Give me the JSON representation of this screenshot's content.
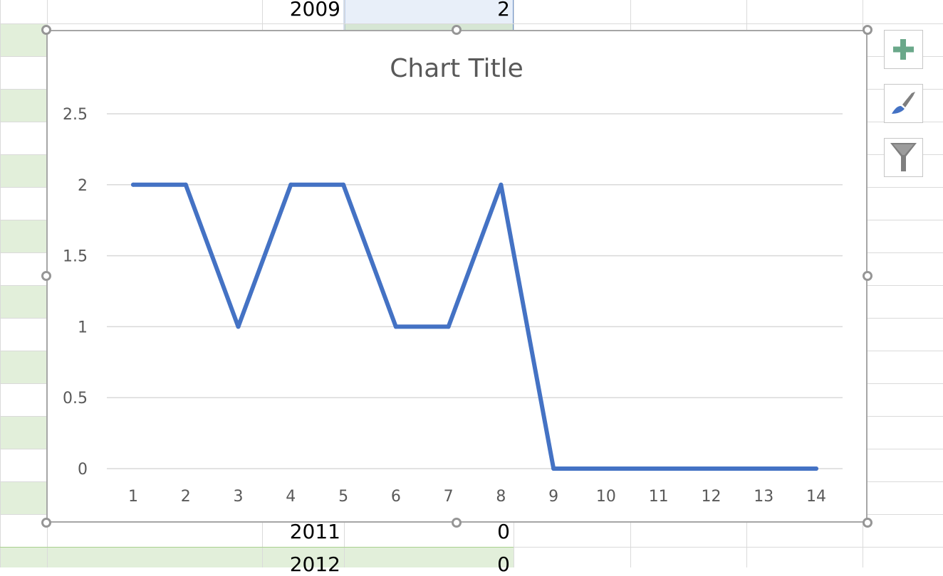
{
  "sheet": {
    "rows": [
      {
        "year": "2009",
        "value": "2"
      },
      {
        "year": "2011",
        "value": "0"
      },
      {
        "year": "2012",
        "value": "0"
      }
    ]
  },
  "chart_tools": {
    "elements_icon": "plus-icon",
    "styles_icon": "paintbrush-icon",
    "filters_icon": "funnel-icon"
  },
  "colors": {
    "series": "#4472c4",
    "band": "#e2efda",
    "selection": "#e8eff9",
    "plus": "#6aa88a"
  },
  "chart_data": {
    "type": "line",
    "title": "Chart Title",
    "x": [
      1,
      2,
      3,
      4,
      5,
      6,
      7,
      8,
      9,
      10,
      11,
      12,
      13,
      14
    ],
    "series": [
      {
        "values": [
          2,
          2,
          1,
          2,
          2,
          1,
          1,
          2,
          0,
          0,
          0,
          0,
          0,
          0
        ]
      }
    ],
    "ylim": [
      0,
      2.5
    ],
    "yticks": [
      "0",
      "0.5",
      "1",
      "1.5",
      "2",
      "2.5"
    ],
    "xticks": [
      "1",
      "2",
      "3",
      "4",
      "5",
      "6",
      "7",
      "8",
      "9",
      "10",
      "11",
      "12",
      "13",
      "14"
    ],
    "grid": true,
    "legend": "none"
  }
}
